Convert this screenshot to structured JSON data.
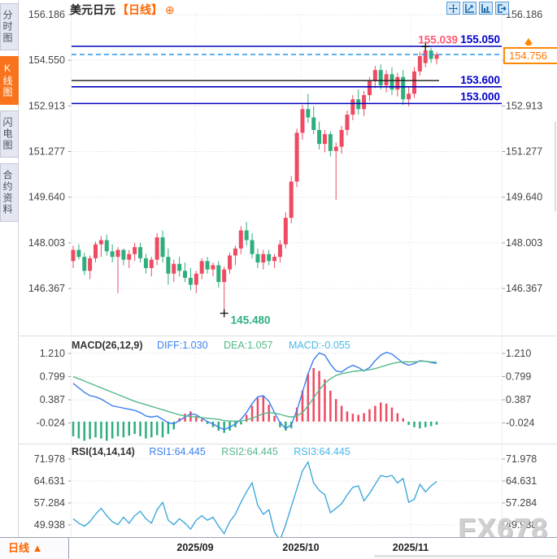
{
  "header": {
    "title": "美元日元",
    "period_tag": "【日线】",
    "settings_icon": "⊕"
  },
  "sidebar": {
    "tabs": [
      {
        "label": "分时图",
        "active": false
      },
      {
        "label": "K线图",
        "active": true
      },
      {
        "label": "闪电图",
        "active": false
      },
      {
        "label": "合约资料",
        "active": false
      }
    ]
  },
  "toolbar": {
    "icons": [
      "pan-crosshair",
      "scale-left-axis",
      "scale-bottom-axis",
      "exit-view"
    ]
  },
  "bottom_bar": {
    "period_label": "日线",
    "period_arrow": "▲"
  },
  "watermark": "FX678",
  "colors": {
    "up": "#ee4b63",
    "down": "#2fae7d",
    "hline": "#0000bb",
    "hline_label": "#0000cc",
    "dashed_line": "#2b95e8",
    "trendline": "#1a1a1a",
    "high_label": "#ff5a75",
    "low_label": "#2fae7d",
    "accent_orange": "#ff7700",
    "diff_line": "#3b7ff0",
    "dea_line": "#55b98a",
    "macd_text": "#49b8e8",
    "rsi_line": "#3fa8dc",
    "axis_text": "#444",
    "grid": "#d9d9d9"
  },
  "chart_data": [
    {
      "type": "candlestick",
      "title": "美元日元 日线",
      "y_ticks": [
        156.186,
        154.55,
        152.913,
        151.277,
        149.64,
        148.003,
        146.367
      ],
      "right_axis_hidden_tick": 154.55,
      "x_labels": [
        "2025/09",
        "2025/10",
        "2025/11"
      ],
      "annotations": {
        "current_price": {
          "label": "154.756",
          "value": 154.756
        },
        "high_marker": {
          "label": "155.039",
          "value": 155.039,
          "index": 63
        },
        "low_marker": {
          "label": "145.480",
          "value": 145.48,
          "index": 27
        },
        "hlines": [
          {
            "label": "155.050",
            "value": 155.05
          },
          {
            "label": "153.600",
            "value": 153.6
          },
          {
            "label": "153.000",
            "value": 153.0
          }
        ],
        "trendline_value": 153.82
      },
      "candles": [
        [
          147.35,
          147.9,
          147.1,
          147.75
        ],
        [
          147.75,
          147.95,
          147.4,
          147.5
        ],
        [
          147.5,
          147.65,
          146.85,
          147.0
        ],
        [
          147.0,
          147.55,
          146.7,
          147.45
        ],
        [
          147.45,
          148.05,
          147.3,
          147.95
        ],
        [
          147.95,
          148.25,
          147.5,
          148.1
        ],
        [
          148.1,
          148.3,
          147.55,
          147.7
        ],
        [
          147.7,
          147.95,
          147.3,
          147.5
        ],
        [
          147.5,
          147.85,
          146.2,
          147.75
        ],
        [
          147.75,
          147.8,
          147.2,
          147.4
        ],
        [
          147.4,
          147.75,
          147.1,
          147.6
        ],
        [
          147.6,
          148.0,
          147.35,
          147.85
        ],
        [
          147.85,
          148.0,
          147.3,
          147.45
        ],
        [
          147.45,
          147.6,
          146.9,
          147.1
        ],
        [
          147.1,
          147.5,
          146.8,
          147.4
        ],
        [
          147.4,
          148.35,
          147.2,
          148.2
        ],
        [
          148.2,
          148.45,
          147.3,
          147.5
        ],
        [
          147.5,
          147.8,
          146.5,
          146.9
        ],
        [
          146.9,
          147.4,
          146.6,
          147.25
        ],
        [
          147.25,
          147.5,
          146.8,
          147.0
        ],
        [
          147.0,
          147.3,
          146.6,
          146.75
        ],
        [
          146.75,
          147.1,
          146.3,
          146.5
        ],
        [
          146.5,
          147.0,
          146.2,
          146.9
        ],
        [
          146.9,
          147.45,
          146.7,
          147.35
        ],
        [
          147.35,
          147.5,
          146.9,
          147.05
        ],
        [
          147.05,
          147.3,
          146.8,
          147.2
        ],
        [
          147.2,
          147.35,
          146.4,
          146.6
        ],
        [
          146.6,
          147.15,
          145.48,
          147.05
        ],
        [
          147.05,
          147.65,
          146.9,
          147.55
        ],
        [
          147.55,
          147.9,
          147.2,
          147.8
        ],
        [
          147.8,
          148.6,
          147.6,
          148.45
        ],
        [
          148.45,
          148.75,
          147.9,
          148.1
        ],
        [
          148.1,
          148.35,
          147.45,
          147.6
        ],
        [
          147.6,
          147.8,
          147.1,
          147.3
        ],
        [
          147.3,
          147.75,
          147.05,
          147.6
        ],
        [
          147.6,
          147.75,
          147.2,
          147.35
        ],
        [
          147.35,
          147.6,
          147.1,
          147.5
        ],
        [
          147.5,
          148.1,
          147.3,
          147.95
        ],
        [
          147.95,
          149.1,
          147.8,
          148.9
        ],
        [
          148.9,
          150.4,
          148.7,
          150.2
        ],
        [
          150.2,
          152.1,
          150.0,
          151.95
        ],
        [
          151.95,
          152.95,
          151.7,
          152.8
        ],
        [
          152.8,
          153.35,
          152.3,
          152.5
        ],
        [
          152.5,
          152.9,
          151.9,
          152.05
        ],
        [
          152.05,
          152.35,
          151.35,
          151.55
        ],
        [
          151.55,
          152.05,
          151.25,
          151.9
        ],
        [
          151.9,
          152.0,
          151.1,
          151.3
        ],
        [
          151.3,
          151.6,
          149.55,
          151.45
        ],
        [
          151.45,
          152.2,
          151.2,
          152.05
        ],
        [
          152.05,
          152.75,
          151.85,
          152.6
        ],
        [
          152.6,
          153.3,
          152.4,
          153.15
        ],
        [
          153.15,
          153.5,
          152.6,
          152.8
        ],
        [
          152.8,
          153.45,
          152.55,
          153.3
        ],
        [
          153.3,
          153.95,
          153.1,
          153.8
        ],
        [
          153.8,
          154.35,
          153.55,
          154.2
        ],
        [
          154.2,
          154.4,
          153.5,
          153.65
        ],
        [
          153.65,
          154.2,
          153.4,
          154.05
        ],
        [
          154.05,
          154.3,
          153.3,
          153.5
        ],
        [
          153.5,
          154.1,
          153.25,
          153.95
        ],
        [
          153.95,
          154.2,
          152.95,
          153.15
        ],
        [
          153.15,
          153.6,
          152.9,
          153.35
        ],
        [
          153.35,
          154.3,
          153.2,
          154.15
        ],
        [
          154.15,
          154.85,
          154.0,
          154.7
        ],
        [
          154.45,
          155.039,
          154.3,
          154.9
        ],
        [
          154.9,
          155.0,
          154.45,
          154.6
        ],
        [
          154.6,
          154.85,
          154.4,
          154.756
        ]
      ]
    },
    {
      "type": "macd",
      "label": "MACD(26,12,9)",
      "readouts": {
        "diff": "DIFF:1.030",
        "dea": "DEA:1.057",
        "macd": "MACD:-0.055"
      },
      "y_ticks": [
        1.21,
        0.799,
        0.387,
        -0.024
      ],
      "diff": [
        0.68,
        0.6,
        0.52,
        0.46,
        0.44,
        0.4,
        0.34,
        0.28,
        0.26,
        0.24,
        0.22,
        0.2,
        0.16,
        0.1,
        0.08,
        0.1,
        0.04,
        -0.02,
        -0.04,
        0.02,
        0.08,
        0.14,
        0.12,
        0.06,
        0.0,
        -0.04,
        -0.1,
        -0.14,
        -0.1,
        -0.04,
        0.04,
        0.16,
        0.32,
        0.44,
        0.46,
        0.36,
        0.16,
        -0.02,
        -0.12,
        -0.06,
        0.2,
        0.52,
        0.85,
        1.1,
        1.22,
        1.18,
        1.02,
        0.9,
        0.88,
        0.95,
        1.0,
        0.96,
        0.9,
        0.96,
        1.08,
        1.18,
        1.23,
        1.2,
        1.12,
        1.04,
        1.0,
        1.03,
        1.08,
        1.07,
        1.05,
        1.03
      ],
      "dea": [
        0.8,
        0.76,
        0.72,
        0.68,
        0.64,
        0.6,
        0.56,
        0.52,
        0.48,
        0.44,
        0.4,
        0.36,
        0.33,
        0.3,
        0.27,
        0.24,
        0.21,
        0.18,
        0.15,
        0.12,
        0.1,
        0.09,
        0.08,
        0.07,
        0.06,
        0.05,
        0.04,
        0.02,
        0.01,
        0.01,
        0.01,
        0.03,
        0.06,
        0.1,
        0.14,
        0.16,
        0.15,
        0.13,
        0.1,
        0.08,
        0.1,
        0.16,
        0.28,
        0.42,
        0.56,
        0.68,
        0.76,
        0.82,
        0.85,
        0.87,
        0.89,
        0.9,
        0.91,
        0.92,
        0.94,
        0.97,
        1.0,
        1.03,
        1.05,
        1.06,
        1.06,
        1.06,
        1.07,
        1.07,
        1.06,
        1.057
      ],
      "hist": [
        -0.26,
        -0.3,
        -0.34,
        -0.31,
        -0.28,
        -0.3,
        -0.34,
        -0.3,
        -0.26,
        -0.28,
        -0.25,
        -0.22,
        -0.26,
        -0.3,
        -0.28,
        -0.24,
        -0.28,
        -0.22,
        -0.14,
        0.06,
        0.14,
        0.18,
        0.1,
        0.04,
        -0.04,
        -0.1,
        -0.16,
        -0.2,
        -0.16,
        -0.1,
        -0.05,
        0.12,
        0.28,
        0.42,
        0.45,
        0.3,
        0.1,
        -0.1,
        -0.16,
        -0.12,
        0.25,
        0.55,
        0.85,
        0.95,
        0.9,
        0.75,
        0.55,
        0.4,
        0.28,
        0.18,
        0.14,
        0.12,
        0.15,
        0.22,
        0.28,
        0.34,
        0.32,
        0.25,
        0.15,
        0.06,
        -0.06,
        -0.1,
        -0.12,
        -0.1,
        -0.08,
        -0.055
      ]
    },
    {
      "type": "rsi",
      "label": "RSI(14,14,14)",
      "readouts": {
        "rsi1": "RSI1:64.445",
        "rsi2": "RSI2:64.445",
        "rsi3": "RSI3:64.445"
      },
      "y_ticks": [
        71.978,
        64.631,
        57.284,
        49.938
      ],
      "values": [
        52.0,
        50.5,
        49.5,
        51.0,
        53.5,
        55.5,
        53.0,
        51.0,
        50.0,
        52.5,
        50.5,
        53.0,
        54.5,
        52.0,
        50.5,
        55.0,
        57.5,
        51.5,
        50.0,
        52.0,
        50.5,
        48.5,
        51.5,
        53.0,
        51.5,
        52.5,
        49.5,
        47.0,
        51.0,
        53.5,
        57.5,
        61.0,
        64.0,
        56.5,
        53.5,
        55.0,
        47.5,
        44.8,
        50.0,
        56.0,
        62.0,
        68.0,
        71.0,
        64.0,
        61.5,
        60.0,
        54.0,
        55.5,
        57.0,
        60.0,
        62.5,
        63.0,
        58.0,
        60.5,
        63.5,
        66.5,
        66.0,
        66.5,
        64.0,
        65.5,
        57.5,
        58.5,
        63.5,
        61.0,
        63.0,
        64.445
      ]
    }
  ]
}
